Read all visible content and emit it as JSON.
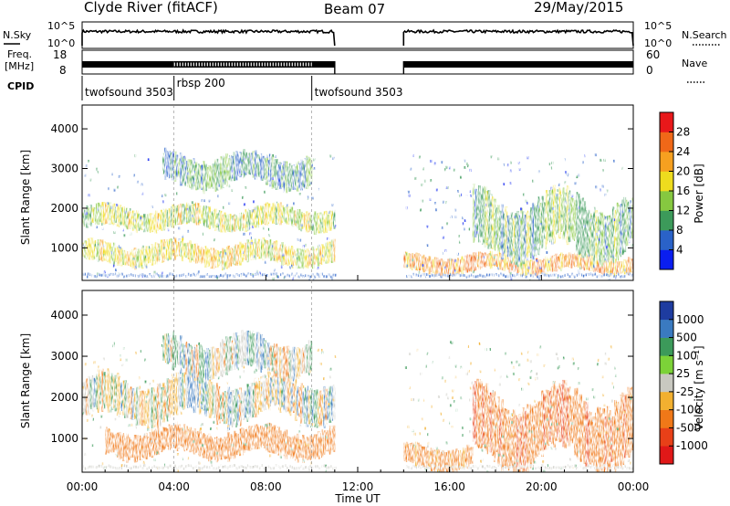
{
  "header": {
    "title": "Clyde River (fitACF)",
    "beam": "Beam 07",
    "date": "29/May/2015"
  },
  "nsky_panel": {
    "left_label": "N.Sky",
    "right_label": "N.Search",
    "left_ticks": [
      "10^5",
      "10^0"
    ],
    "right_ticks": [
      "10^5",
      "10^0"
    ],
    "legend_style": "dotted"
  },
  "freq_panel": {
    "left_label_lines": [
      "Freq.",
      "[MHz]"
    ],
    "right_label": "Nave",
    "left_ticks": [
      "18",
      "8"
    ],
    "right_ticks": [
      "60",
      "0"
    ],
    "legend_style": "dotted"
  },
  "cpid": {
    "label": "CPID",
    "segments": [
      {
        "label": "twofsound 3503",
        "start_h": 0,
        "end_h": 4
      },
      {
        "label": "rbsp 200",
        "start_h": 4,
        "end_h": 10
      },
      {
        "label": "twofsound 3503",
        "start_h": 10,
        "end_h": 24
      }
    ]
  },
  "x_axis": {
    "label": "Time UT",
    "range_h": [
      0,
      24
    ],
    "ticks": [
      "00:00",
      "04:00",
      "08:00",
      "12:00",
      "16:00",
      "20:00",
      "00:00"
    ]
  },
  "data_gap_h": [
    11,
    14
  ],
  "chart_data": [
    {
      "type": "heatmap",
      "name": "power",
      "x": "Time UT",
      "ylabel": "Slant Range [km]",
      "ylim": [
        180,
        4600
      ],
      "yticks": [
        "1000",
        "2000",
        "3000",
        "4000"
      ],
      "colorbar_label": "Power [dB]",
      "colorbar_ticks": [
        "4",
        "8",
        "12",
        "16",
        "20",
        "24",
        "28"
      ],
      "colorbar_colors": [
        "#0a1ef0",
        "#2a62c8",
        "#3c9a5a",
        "#86c840",
        "#eedc1e",
        "#f6a020",
        "#f06818",
        "#e8181a"
      ],
      "bands": [
        {
          "t": [
            0,
            11
          ],
          "r": [
            1500,
            2000
          ],
          "level": 18
        },
        {
          "t": [
            0,
            11
          ],
          "r": [
            600,
            1100
          ],
          "level": 20
        },
        {
          "t": [
            3.5,
            10
          ],
          "r": [
            2600,
            3300
          ],
          "level": 12
        },
        {
          "t": [
            14,
            24
          ],
          "r": [
            400,
            800
          ],
          "level": 25
        },
        {
          "t": [
            17,
            24
          ],
          "r": [
            900,
            2200
          ],
          "level": 14
        }
      ]
    },
    {
      "type": "heatmap",
      "name": "velocity",
      "x": "Time UT",
      "ylabel": "Slant Range [km]",
      "ylim": [
        180,
        4600
      ],
      "yticks": [
        "1000",
        "2000",
        "3000",
        "4000"
      ],
      "colorbar_label": "Velocity [m s⁻¹]",
      "colorbar_ticks": [
        "1000",
        "500",
        "100",
        "25",
        "-25",
        "-100",
        "-500",
        "-1000"
      ],
      "colorbar_colors": [
        "#1e3ca0",
        "#3a7ac0",
        "#3c9a5a",
        "#7cd238",
        "#c8c8c0",
        "#f2b030",
        "#f07818",
        "#e84018",
        "#e01818"
      ],
      "bands": [
        {
          "t": [
            0,
            11
          ],
          "r": [
            1500,
            2400
          ],
          "level": 0
        },
        {
          "t": [
            1,
            11
          ],
          "r": [
            600,
            1200
          ],
          "level": -300
        },
        {
          "t": [
            3.5,
            10
          ],
          "r": [
            2600,
            3400
          ],
          "level": 0
        },
        {
          "t": [
            14,
            17
          ],
          "r": [
            300,
            800
          ],
          "level": -200
        },
        {
          "t": [
            17,
            24
          ],
          "r": [
            500,
            2000
          ],
          "level": -400
        }
      ]
    }
  ]
}
